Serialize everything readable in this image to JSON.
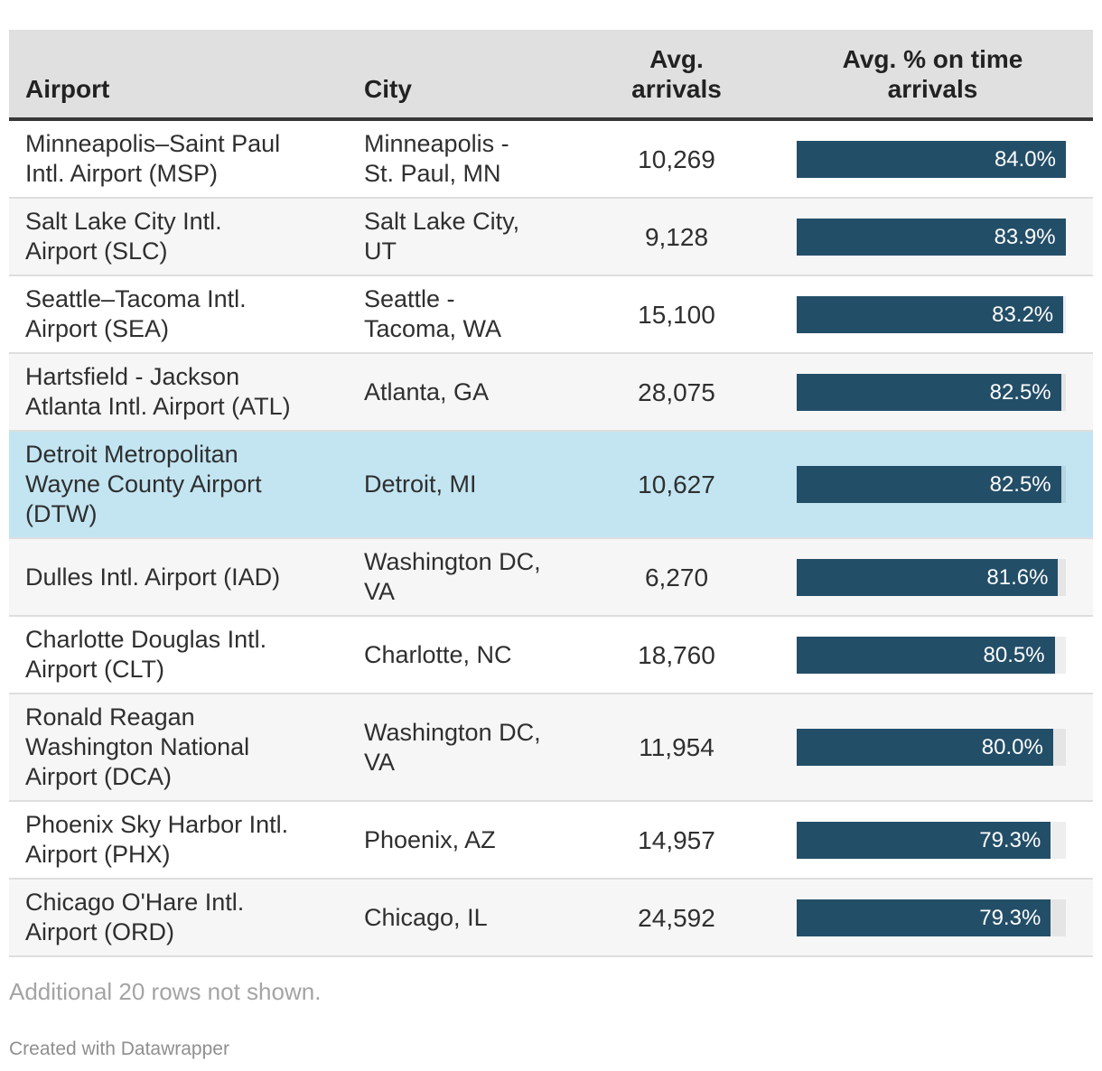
{
  "chart_data": {
    "type": "table",
    "columns": [
      {
        "id": "airport",
        "label": "Airport",
        "display": "Airport"
      },
      {
        "id": "city",
        "label": "City",
        "display": "City"
      },
      {
        "id": "arrivals",
        "label": "Avg. arrivals",
        "display": "Avg.\narrivals"
      },
      {
        "id": "ontime",
        "label": "Avg. % on time arrivals",
        "display": "Avg. % on time\narrivals"
      }
    ],
    "bar_scale_max": 84.0,
    "rows": [
      {
        "airport": "Minneapolis–Saint Paul Intl. Airport (MSP)",
        "airport_display": "Minneapolis–Saint Paul\nIntl. Airport (MSP)",
        "city": "Minneapolis - St. Paul, MN",
        "city_display": "Minneapolis -\nSt. Paul, MN",
        "arrivals": "10,269",
        "ontime_pct": 84.0,
        "ontime_label": "84.0%",
        "highlighted": false
      },
      {
        "airport": "Salt Lake City Intl. Airport (SLC)",
        "airport_display": "Salt Lake City Intl.\nAirport (SLC)",
        "city": "Salt Lake City, UT",
        "city_display": "Salt Lake City,\nUT",
        "arrivals": "9,128",
        "ontime_pct": 83.9,
        "ontime_label": "83.9%",
        "highlighted": false
      },
      {
        "airport": "Seattle–Tacoma Intl. Airport (SEA)",
        "airport_display": "Seattle–Tacoma Intl.\nAirport (SEA)",
        "city": "Seattle - Tacoma, WA",
        "city_display": "Seattle -\nTacoma, WA",
        "arrivals": "15,100",
        "ontime_pct": 83.2,
        "ontime_label": "83.2%",
        "highlighted": false
      },
      {
        "airport": "Hartsfield - Jackson Atlanta Intl. Airport (ATL)",
        "airport_display": "Hartsfield - Jackson\nAtlanta Intl. Airport (ATL)",
        "city": "Atlanta, GA",
        "city_display": "Atlanta, GA",
        "arrivals": "28,075",
        "ontime_pct": 82.5,
        "ontime_label": "82.5%",
        "highlighted": false
      },
      {
        "airport": "Detroit Metropolitan Wayne County Airport (DTW)",
        "airport_display": "Detroit Metropolitan\nWayne County Airport\n(DTW)",
        "city": "Detroit, MI",
        "city_display": "Detroit, MI",
        "arrivals": "10,627",
        "ontime_pct": 82.5,
        "ontime_label": "82.5%",
        "highlighted": true
      },
      {
        "airport": "Dulles Intl. Airport (IAD)",
        "airport_display": "Dulles Intl. Airport (IAD)",
        "city": "Washington DC, VA",
        "city_display": "Washington DC,\nVA",
        "arrivals": "6,270",
        "ontime_pct": 81.6,
        "ontime_label": "81.6%",
        "highlighted": false
      },
      {
        "airport": "Charlotte Douglas Intl. Airport (CLT)",
        "airport_display": "Charlotte Douglas Intl.\nAirport (CLT)",
        "city": "Charlotte, NC",
        "city_display": "Charlotte, NC",
        "arrivals": "18,760",
        "ontime_pct": 80.5,
        "ontime_label": "80.5%",
        "highlighted": false
      },
      {
        "airport": "Ronald Reagan Washington National Airport (DCA)",
        "airport_display": "Ronald Reagan\nWashington National\nAirport (DCA)",
        "city": "Washington DC, VA",
        "city_display": "Washington DC,\nVA",
        "arrivals": "11,954",
        "ontime_pct": 80.0,
        "ontime_label": "80.0%",
        "highlighted": false
      },
      {
        "airport": "Phoenix Sky Harbor Intl. Airport (PHX)",
        "airport_display": "Phoenix Sky Harbor Intl.\nAirport (PHX)",
        "city": "Phoenix, AZ",
        "city_display": "Phoenix, AZ",
        "arrivals": "14,957",
        "ontime_pct": 79.3,
        "ontime_label": "79.3%",
        "highlighted": false
      },
      {
        "airport": "Chicago O'Hare Intl. Airport (ORD)",
        "airport_display": "Chicago O'Hare Intl.\nAirport (ORD)",
        "city": "Chicago, IL",
        "city_display": "Chicago, IL",
        "arrivals": "24,592",
        "ontime_pct": 79.3,
        "ontime_label": "79.3%",
        "highlighted": false
      }
    ]
  },
  "footer": {
    "note": "Additional 20 rows not shown.",
    "credit": "Created with Datawrapper"
  },
  "colors": {
    "bar": "#234e68",
    "bar_label_text": "#ffffff",
    "highlight_row": "#c3e5f2",
    "header_bg": "#e0e0e0",
    "zebra_row": "#f6f6f6",
    "header_border": "#383838",
    "row_divider": "#dedede"
  }
}
